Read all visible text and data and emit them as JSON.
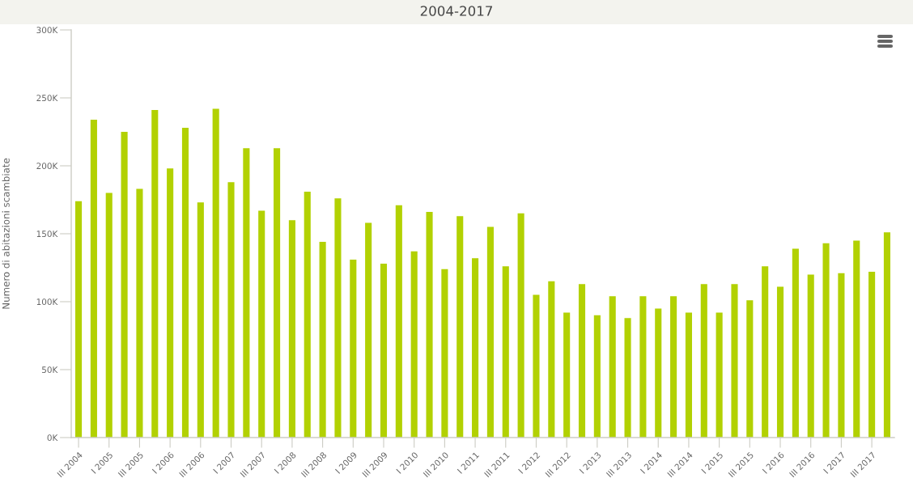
{
  "chart_data": {
    "type": "bar",
    "title": "2004-2017",
    "ylabel": "Numero di abitazioni scambiate",
    "categories": [
      "III 2004",
      null,
      "I 2005",
      null,
      "III 2005",
      null,
      "I 2006",
      null,
      "III 2006",
      null,
      "I 2007",
      null,
      "III 2007",
      null,
      "I 2008",
      null,
      "III 2008",
      null,
      "I 2009",
      null,
      "III 2009",
      null,
      "I 2010",
      null,
      "III 2010",
      null,
      "I 2011",
      null,
      "III 2011",
      null,
      "I 2012",
      null,
      "III 2012",
      null,
      "I 2013",
      null,
      "III 2013",
      null,
      "I 2014",
      null,
      "III 2014",
      null,
      "I 2015",
      null,
      "III 2015",
      null,
      "I 2016",
      null,
      "III 2016",
      null,
      "I 2017",
      null,
      "III 2017",
      null
    ],
    "values": [
      174000,
      234000,
      180000,
      225000,
      183000,
      241000,
      198000,
      228000,
      173000,
      242000,
      188000,
      213000,
      167000,
      213000,
      160000,
      181000,
      144000,
      176000,
      131000,
      158000,
      128000,
      171000,
      137000,
      166000,
      124000,
      163000,
      132000,
      155000,
      126000,
      165000,
      105000,
      115000,
      92000,
      113000,
      90000,
      104000,
      88000,
      104000,
      95000,
      104000,
      92000,
      113000,
      92000,
      113000,
      101000,
      126000,
      111000,
      139000,
      120000,
      143000,
      121000,
      145000,
      122000,
      151000
    ],
    "color": "#b2d102",
    "ylim": [
      0,
      300000
    ],
    "yticks": [
      {
        "value": 0,
        "label": "0K"
      },
      {
        "value": 50000,
        "label": "50K"
      },
      {
        "value": 100000,
        "label": "100K"
      },
      {
        "value": 150000,
        "label": "150K"
      },
      {
        "value": 200000,
        "label": "200K"
      },
      {
        "value": 250000,
        "label": "250K"
      },
      {
        "value": 300000,
        "label": "300K"
      }
    ]
  }
}
